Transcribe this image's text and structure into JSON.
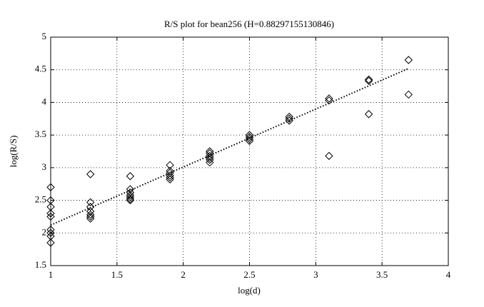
{
  "chart_data": {
    "type": "scatter",
    "title": "R/S plot for bean256 (H=0.88297155130846)",
    "xlabel": "log(d)",
    "ylabel": "log(R/S)",
    "x": [
      1,
      1,
      1,
      1,
      1,
      1,
      1,
      1,
      1,
      1.3,
      1.3,
      1.3,
      1.3,
      1.3,
      1.3,
      1.3,
      1.6,
      1.6,
      1.6,
      1.6,
      1.6,
      1.6,
      1.6,
      1.9,
      1.9,
      1.9,
      1.9,
      1.9,
      1.9,
      2.2,
      2.2,
      2.2,
      2.2,
      2.2,
      2.2,
      2.5,
      2.5,
      2.5,
      2.5,
      2.8,
      2.8,
      2.8,
      3.1,
      3.1,
      3.1,
      3.4,
      3.4,
      3.4,
      3.7,
      3.7
    ],
    "y": [
      2.7,
      2.5,
      2.4,
      2.3,
      2.25,
      2.05,
      2.0,
      1.95,
      1.85,
      2.9,
      2.47,
      2.4,
      2.33,
      2.28,
      2.25,
      2.22,
      2.87,
      2.67,
      2.62,
      2.58,
      2.55,
      2.52,
      2.5,
      3.04,
      2.95,
      2.92,
      2.88,
      2.85,
      2.82,
      3.25,
      3.22,
      3.18,
      3.15,
      3.12,
      3.08,
      3.5,
      3.47,
      3.44,
      3.41,
      3.78,
      3.75,
      3.72,
      4.06,
      4.03,
      3.18,
      4.35,
      4.33,
      3.82,
      4.65,
      4.12
    ],
    "color": "#000000",
    "fit": {
      "x": [
        1,
        3.7
      ],
      "y": [
        2.12,
        4.52
      ]
    },
    "xlim": [
      1,
      4
    ],
    "xticks": [
      1,
      1.5,
      2,
      2.5,
      3,
      3.5,
      4
    ],
    "ylim": [
      1.5,
      5
    ],
    "yticks": [
      1.5,
      2,
      2.5,
      3,
      3.5,
      4,
      4.5,
      5
    ],
    "grid": true
  }
}
